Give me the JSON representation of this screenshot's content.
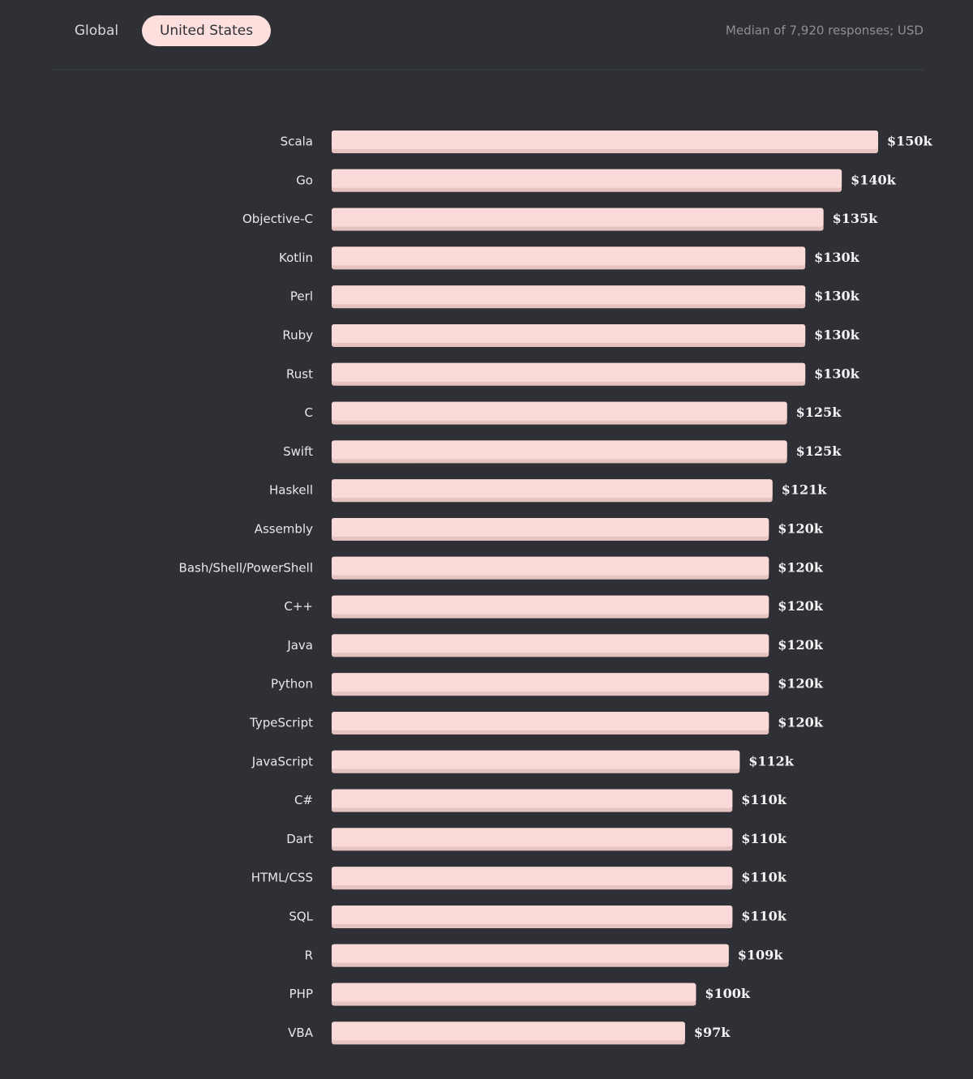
{
  "tabs": [
    "Global",
    "United States"
  ],
  "chart_data": {
    "type": "bar",
    "orientation": "horizontal",
    "subtitle": "Median of 7,920 responses; USD",
    "color": "#f9dad8",
    "categories": [
      "Scala",
      "Go",
      "Objective-C",
      "Kotlin",
      "Perl",
      "Ruby",
      "Rust",
      "C",
      "Swift",
      "Haskell",
      "Assembly",
      "Bash/Shell/PowerShell",
      "C++",
      "Java",
      "Python",
      "TypeScript",
      "JavaScript",
      "C#",
      "Dart",
      "HTML/CSS",
      "SQL",
      "R",
      "PHP",
      "VBA"
    ],
    "values": [
      150,
      140,
      135,
      130,
      130,
      130,
      130,
      125,
      125,
      121,
      120,
      120,
      120,
      120,
      120,
      120,
      112,
      110,
      110,
      110,
      110,
      109,
      100,
      97
    ],
    "value_labels": [
      "$150k",
      "$140k",
      "$135k",
      "$130k",
      "$130k",
      "$130k",
      "$130k",
      "$125k",
      "$125k",
      "$121k",
      "$120k",
      "$120k",
      "$120k",
      "$120k",
      "$120k",
      "$120k",
      "$112k",
      "$110k",
      "$110k",
      "$110k",
      "$110k",
      "$109k",
      "$100k",
      "$97k"
    ]
  }
}
